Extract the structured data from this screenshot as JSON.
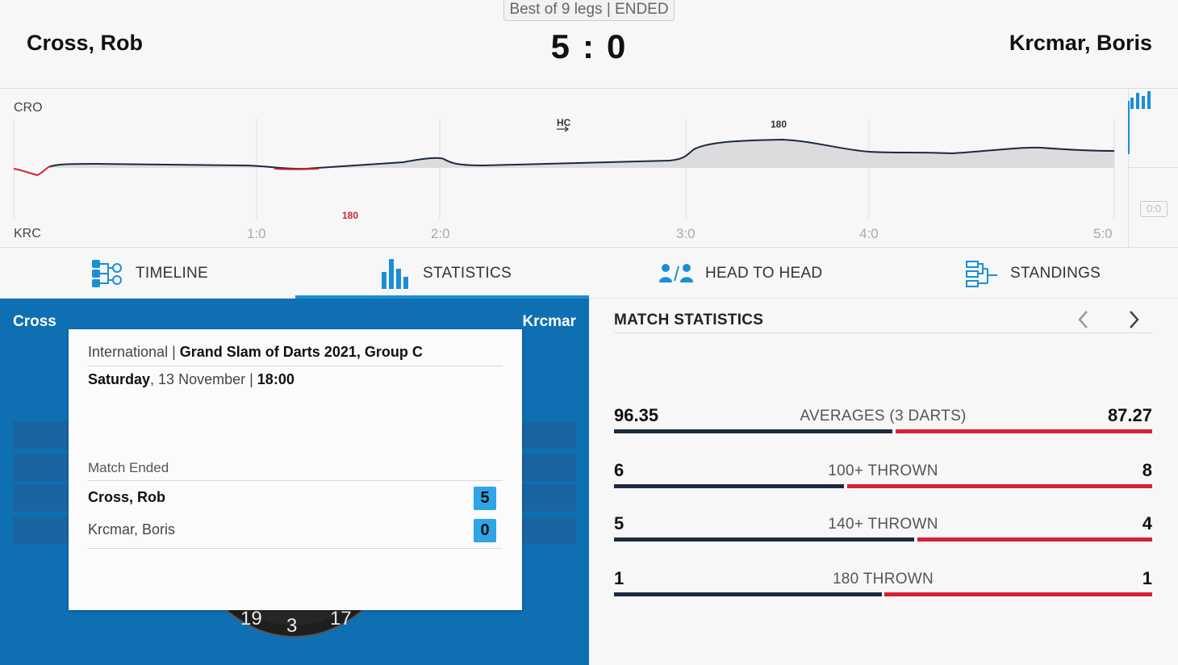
{
  "match": {
    "format": "Best of 9 legs | ENDED",
    "home": "Cross, Rob",
    "away": "Krcmar, Boris",
    "score_home": "5",
    "score_sep": ":",
    "score_away": "0"
  },
  "momentum": {
    "home_code": "CRO",
    "away_code": "KRC",
    "leg_ticks": [
      "1:0",
      "2:0",
      "3:0",
      "4:0",
      "5:0"
    ],
    "annotations": {
      "hc": "HC",
      "home_180": "180",
      "away_180": "180"
    },
    "score_toggle": "0:0",
    "colors": {
      "home_line": "#1b2a3e",
      "away_line": "#d42236",
      "fill": "#dcdcdf"
    }
  },
  "tabs": [
    {
      "label": "TIMELINE",
      "icon": "timeline-icon"
    },
    {
      "label": "STATISTICS",
      "icon": "bar-chart-icon"
    },
    {
      "label": "HEAD TO HEAD",
      "icon": "head-to-head-icon"
    },
    {
      "label": "STANDINGS",
      "icon": "standings-icon"
    }
  ],
  "panel": {
    "home_short": "Cross",
    "away_short": "Krcmar",
    "board_numbers": [
      "19",
      "3",
      "17"
    ]
  },
  "info": {
    "category": "International",
    "tournament": "Grand Slam of Darts 2021, Group C",
    "day": "Saturday",
    "date": "13 November",
    "time": "18:00",
    "status": "Match Ended",
    "home": "Cross, Rob",
    "home_score": "5",
    "away": "Krcmar, Boris",
    "away_score": "0"
  },
  "stats": {
    "title": "MATCH STATISTICS",
    "rows": [
      {
        "label": "AVERAGES (3 DARTS)",
        "home": "96.35",
        "away": "87.27",
        "home_share": 0.52
      },
      {
        "label": "100+ THROWN",
        "home": "6",
        "away": "8",
        "home_share": 0.43
      },
      {
        "label": "140+ THROWN",
        "home": "5",
        "away": "4",
        "home_share": 0.56
      },
      {
        "label": "180 THROWN",
        "home": "1",
        "away": "1",
        "home_share": 0.5
      }
    ],
    "colors": {
      "home": "#1b2a3e",
      "away": "#d42236"
    }
  }
}
